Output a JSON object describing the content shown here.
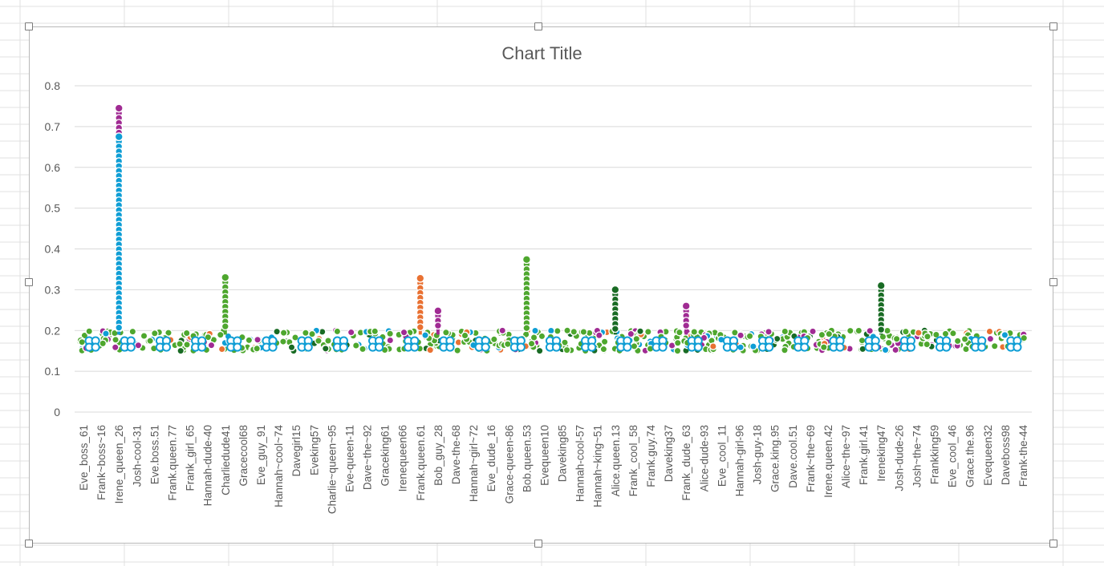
{
  "chart_data": {
    "type": "line",
    "title": "Chart Title",
    "xlabel": "",
    "ylabel": "",
    "ylim": [
      0,
      0.8
    ],
    "yticks": [
      "0",
      "0.1",
      "0.2",
      "0.3",
      "0.4",
      "0.5",
      "0.6",
      "0.7",
      "0.8"
    ],
    "grid": true,
    "legend": "none",
    "categories": [
      "Eve_boss_61",
      "Frank~boss~16",
      "Irene_queen_26",
      "Josh-cool-31",
      "Eve.boss.51",
      "Frank.queen.77",
      "Frank_girl_65",
      "Hannah-dude-40",
      "Charliedude41",
      "Gracecool68",
      "Eve_guy_91",
      "Hannah~cool~74",
      "Davegirl15",
      "Eveking57",
      "Charlie~queen~95",
      "Eve-queen-11",
      "Dave~the~92",
      "Graceking61",
      "Irenequeen66",
      "Frank.queen.61",
      "Bob_guy_28",
      "Dave-the-68",
      "Hannah~girl~72",
      "Eve_dude_16",
      "Grace-queen-86",
      "Bob.queen.53",
      "Evequeen10",
      "Daveking85",
      "Hannah-cool-57",
      "Hannah~king~51",
      "Alice.queen.13",
      "Frank_cool_58",
      "Frank.guy.74",
      "Daveking37",
      "Frank_dude_63",
      "Alice-dude-93",
      "Eve_cool_11",
      "Hannah-girl-96",
      "Josh-guy-18",
      "Grace.king.95",
      "Dave.cool.51",
      "Frank~the~69",
      "Irene.queen.42",
      "Alice~the~97",
      "Frank.girl.41",
      "Ireneking47",
      "Josh-dude-26",
      "Josh~the~74",
      "Frankking59",
      "Eve_cool_46",
      "Grace.the.96",
      "Evequeen32",
      "Daveboss98",
      "Frank-the-44"
    ],
    "series_colors": [
      "#4ea72e",
      "#196b24",
      "#e97132",
      "#a02b93",
      "#0f9ed5"
    ],
    "peaks": [
      {
        "category": "Irene_queen_26",
        "color": "#4ea72e",
        "value": 0.715
      },
      {
        "category": "Irene_queen_26",
        "color": "#a02b93",
        "value": 0.745
      },
      {
        "category": "Irene_queen_26",
        "color": "#0f9ed5",
        "value": 0.675
      },
      {
        "category": "Charliedude41",
        "color": "#4ea72e",
        "value": 0.33
      },
      {
        "category": "Frank.queen.61",
        "color": "#e97132",
        "value": 0.328
      },
      {
        "category": "Bob_guy_28",
        "color": "#a02b93",
        "value": 0.248
      },
      {
        "category": "Bob.queen.53",
        "color": "#4ea72e",
        "value": 0.374
      },
      {
        "category": "Alice.queen.13",
        "color": "#196b24",
        "value": 0.3
      },
      {
        "category": "Frank_dude_63",
        "color": "#a02b93",
        "value": 0.26
      },
      {
        "category": "Ireneking47",
        "color": "#196b24",
        "value": 0.31
      }
    ],
    "baseline_range": [
      0.15,
      0.2
    ]
  }
}
